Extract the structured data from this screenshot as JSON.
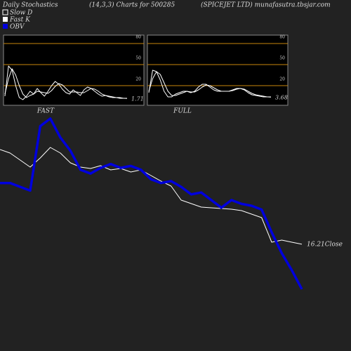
{
  "header": {
    "left": "Daily Stochastics",
    "middle": "(14,3,3) Charts for 500285",
    "right": "(SPICEJET LTD) munafasutra.tbsjar.com"
  },
  "chart_data": [
    {
      "type": "stoch",
      "title": "FAST",
      "ylim": [
        -8,
        92
      ],
      "yticks": [
        20,
        50,
        80
      ],
      "line_color": "#c8860b",
      "series": [
        {
          "name": "Fast K",
          "color": "#ffffff",
          "values": [
            5,
            48,
            42,
            20,
            3,
            0,
            5,
            12,
            8,
            16,
            10,
            5,
            12,
            20,
            26,
            22,
            15,
            10,
            8,
            14,
            10,
            6,
            14,
            18,
            16,
            12,
            8,
            5,
            6,
            4,
            3,
            3,
            2,
            2,
            1.71
          ]
        },
        {
          "name": "Slow D",
          "color": "#ffffff",
          "values": [
            8,
            30,
            44,
            35,
            20,
            8,
            3,
            6,
            8,
            12,
            11,
            10,
            9,
            13,
            19,
            23,
            21,
            16,
            11,
            11,
            11,
            10,
            10,
            13,
            16,
            15,
            12,
            8,
            6,
            5,
            4,
            3,
            3,
            2,
            2
          ]
        }
      ]
    },
    {
      "type": "stoch",
      "title": "FULL",
      "ylim": [
        -8,
        92
      ],
      "yticks": [
        20,
        50,
        80
      ],
      "line_color": "#c8860b",
      "series": [
        {
          "name": "Fast K",
          "color": "#ffffff",
          "values": [
            10,
            42,
            40,
            28,
            12,
            4,
            4,
            8,
            10,
            12,
            12,
            10,
            12,
            18,
            22,
            22,
            18,
            14,
            12,
            12,
            12,
            12,
            14,
            16,
            16,
            14,
            10,
            7,
            6,
            5,
            4,
            4,
            3.68
          ]
        },
        {
          "name": "Slow D",
          "color": "#ffffff",
          "values": [
            12,
            30,
            40,
            36,
            24,
            12,
            6,
            6,
            8,
            10,
            12,
            11,
            11,
            14,
            18,
            21,
            20,
            17,
            14,
            12,
            12,
            12,
            13,
            15,
            16,
            15,
            12,
            9,
            7,
            6,
            5,
            4,
            4
          ]
        }
      ]
    },
    {
      "type": "price",
      "ylim": [
        9,
        36
      ],
      "y2lim": [
        0,
        100
      ],
      "categories": [
        null,
        null,
        null,
        null,
        null,
        null,
        null,
        null,
        null,
        null,
        null,
        null,
        null,
        null,
        null,
        null,
        null,
        null,
        null,
        null,
        null,
        null,
        null,
        null,
        null,
        null,
        null,
        null,
        null,
        null,
        null
      ],
      "series": [
        {
          "name": "Close",
          "color": "#ffffff",
          "values": [
            29.7,
            29.2,
            28.2,
            27.2,
            28.5,
            30,
            29.2,
            27.8,
            27.2,
            27,
            27.4,
            26.8,
            27,
            26.5,
            26.8,
            26,
            25.2,
            24.5,
            22.5,
            22,
            21.5,
            21.4,
            21.3,
            21.2,
            21,
            20.5,
            20,
            16.5,
            16.8,
            16.5,
            16.21
          ]
        },
        {
          "name": "OBV",
          "color": "#0000dd",
          "axis": "y2",
          "values": [
            59,
            59,
            57,
            55,
            89,
            93,
            83,
            76,
            66,
            64,
            67,
            69,
            67,
            68,
            66,
            61,
            59,
            60,
            57,
            53,
            54,
            50,
            46,
            50,
            48,
            47,
            45,
            33,
            22,
            13,
            3
          ]
        }
      ]
    }
  ]
}
